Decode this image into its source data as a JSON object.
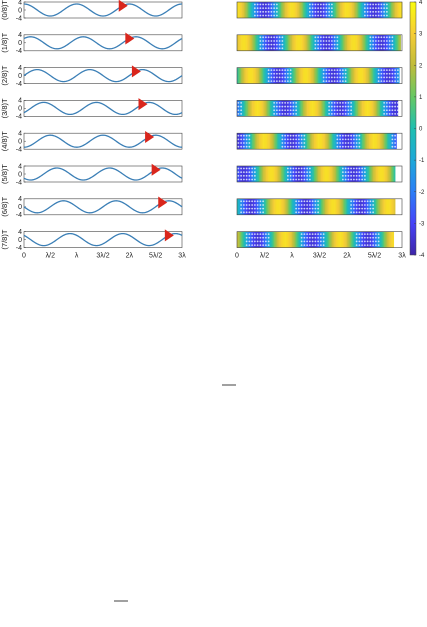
{
  "chart_data": [
    {
      "type": "line",
      "panels": [
        {
          "ylabel": "(0/8)T",
          "phase": 0,
          "marker_x": 3.75
        },
        {
          "ylabel": "(1/8)T",
          "phase": 1,
          "marker_x": 4.0
        },
        {
          "ylabel": "(2/8)T",
          "phase": 2,
          "marker_x": 4.25
        },
        {
          "ylabel": "(3/8)T",
          "phase": 3,
          "marker_x": 4.5
        },
        {
          "ylabel": "(4/8)T",
          "phase": 4,
          "marker_x": 4.75
        },
        {
          "ylabel": "(5/8)T",
          "phase": 5,
          "marker_x": 5.0
        },
        {
          "ylabel": "(6/8)T",
          "phase": 6,
          "marker_x": 5.25
        },
        {
          "ylabel": "(7/8)T",
          "phase": 7,
          "marker_x": 5.5
        }
      ],
      "amplitude": 3,
      "wavelength": 2,
      "xlim": [
        0,
        6
      ],
      "ylim": [
        -4,
        4
      ],
      "yticks": [
        "4",
        "0",
        "-4"
      ],
      "xtick_labels": [
        "0",
        "λ/2",
        "λ",
        "3λ/2",
        "2λ",
        "5λ/2",
        "3λ"
      ],
      "line_color": "#3b7fb6",
      "marker_color": "#d9261c"
    },
    {
      "type": "heatmap",
      "panels": [
        0,
        1,
        2,
        3,
        4,
        5,
        6,
        7
      ],
      "xtick_labels": [
        "0",
        "λ/2",
        "λ",
        "3λ/2",
        "2λ",
        "5λ/2",
        "3λ"
      ],
      "colorbar": {
        "range": [
          -4,
          4
        ],
        "ticks": [
          "4",
          "3",
          "2",
          "1",
          "0",
          "-1",
          "-2",
          "-3",
          "-4"
        ],
        "colors": [
          "#3e26a8",
          "#4743f8",
          "#2c7ef7",
          "#1ea9d9",
          "#1fbfb0",
          "#66c864",
          "#c0bc3a",
          "#f6cd35",
          "#f9fb0e"
        ]
      }
    }
  ]
}
